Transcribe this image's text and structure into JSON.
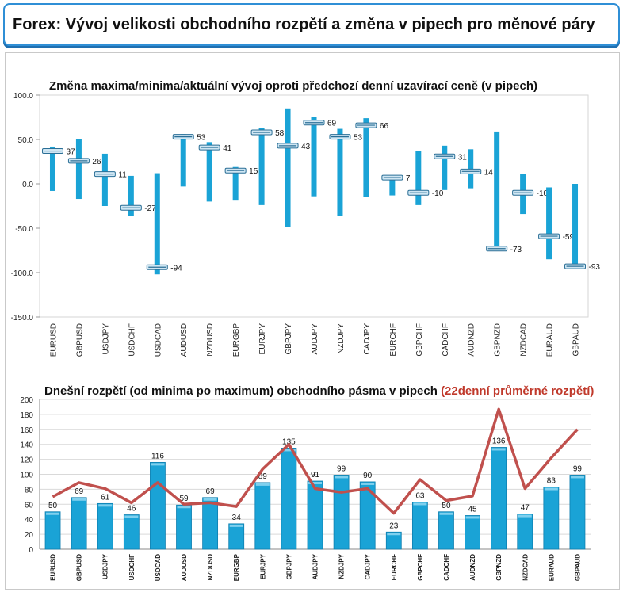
{
  "header": {
    "title": "Forex: Vývoj velikosti obchodního rozpětí a změna v pipech pro měnové páry"
  },
  "colors": {
    "bar": "#1aa3d6",
    "bar_dark": "#0e7fb0",
    "line": "#c0504d",
    "frame": "#2f8fd6"
  },
  "chart_data": [
    {
      "type": "bar",
      "title": "Změna maxima/minima/aktuální vývoj oproti předchozí denní uzavírací ceně (v pipech)",
      "categories": [
        "EURUSD",
        "GBPUSD",
        "USDJPY",
        "USDCHF",
        "USDCAD",
        "AUDUSD",
        "NZDUSD",
        "EURGBP",
        "EURJPY",
        "GBPJPY",
        "AUDJPY",
        "NZDJPY",
        "CADJPY",
        "EURCHF",
        "GBPCHF",
        "CADCHF",
        "AUDNZD",
        "GBPNZD",
        "NZDCAD",
        "EURAUD",
        "GBPAUD"
      ],
      "series": [
        {
          "name": "max",
          "values": [
            42,
            50,
            34,
            9,
            12,
            56,
            47,
            19,
            63,
            85,
            75,
            62,
            74,
            9,
            37,
            43,
            39,
            59,
            11,
            -4,
            0
          ]
        },
        {
          "name": "min",
          "values": [
            -8,
            -17,
            -25,
            -36,
            -102,
            -3,
            -20,
            -18,
            -24,
            -49,
            -14,
            -36,
            -15,
            -13,
            -24,
            -7,
            -5,
            -75,
            -34,
            -85,
            -96
          ]
        },
        {
          "name": "current",
          "values": [
            37,
            26,
            11,
            -27,
            -94,
            53,
            41,
            15,
            58,
            43,
            69,
            53,
            66,
            7,
            -10,
            31,
            14,
            -73,
            -10,
            -59,
            -93
          ]
        }
      ],
      "data_labels": [
        "37",
        "26",
        "11",
        "-27",
        "-94",
        "53",
        "41",
        "15",
        "58",
        "43",
        "69",
        "53",
        "66",
        "7",
        "-10",
        "31",
        "14",
        "-73",
        "-10",
        "-59",
        "-93"
      ],
      "yticks": [
        "100.0",
        "50.0",
        "0.0",
        "-50.0",
        "-100.0",
        "-150.0"
      ],
      "ylim": [
        -150,
        100
      ]
    },
    {
      "type": "bar",
      "title": "Dnešní rozpětí (od minima po maximum) obchodního pásma v pipech",
      "title_suffix": "(22denní průměrné rozpětí)",
      "categories": [
        "EURUSD",
        "GBPUSD",
        "USDJPY",
        "USDCHF",
        "USDCAD",
        "AUDUSD",
        "NZDUSD",
        "EURGBP",
        "EURJPY",
        "GBPJPY",
        "AUDJPY",
        "NZDJPY",
        "CADJPY",
        "EURCHF",
        "GBPCHF",
        "CADCHF",
        "AUDNZD",
        "GBPNZD",
        "NZDCAD",
        "EURAUD",
        "GBPAUD"
      ],
      "series": [
        {
          "name": "Dnešní rozpětí",
          "values": [
            50,
            69,
            61,
            46,
            116,
            59,
            69,
            34,
            89,
            135,
            91,
            99,
            90,
            23,
            63,
            50,
            45,
            136,
            47,
            83,
            99
          ]
        },
        {
          "name": "22denní průměrné rozpětí",
          "values": [
            70,
            89,
            81,
            62,
            89,
            60,
            62,
            57,
            107,
            140,
            81,
            76,
            81,
            48,
            93,
            65,
            71,
            187,
            81,
            122,
            160
          ]
        }
      ],
      "data_labels": [
        "50",
        "69",
        "61",
        "46",
        "116",
        "59",
        "69",
        "34",
        "89",
        "135",
        "91",
        "99",
        "90",
        "23",
        "63",
        "50",
        "45",
        "136",
        "47",
        "83",
        "99"
      ],
      "yticks": [
        "200",
        "180",
        "160",
        "140",
        "120",
        "100",
        "80",
        "60",
        "40",
        "20",
        "0"
      ],
      "ylim": [
        0,
        200
      ]
    }
  ]
}
